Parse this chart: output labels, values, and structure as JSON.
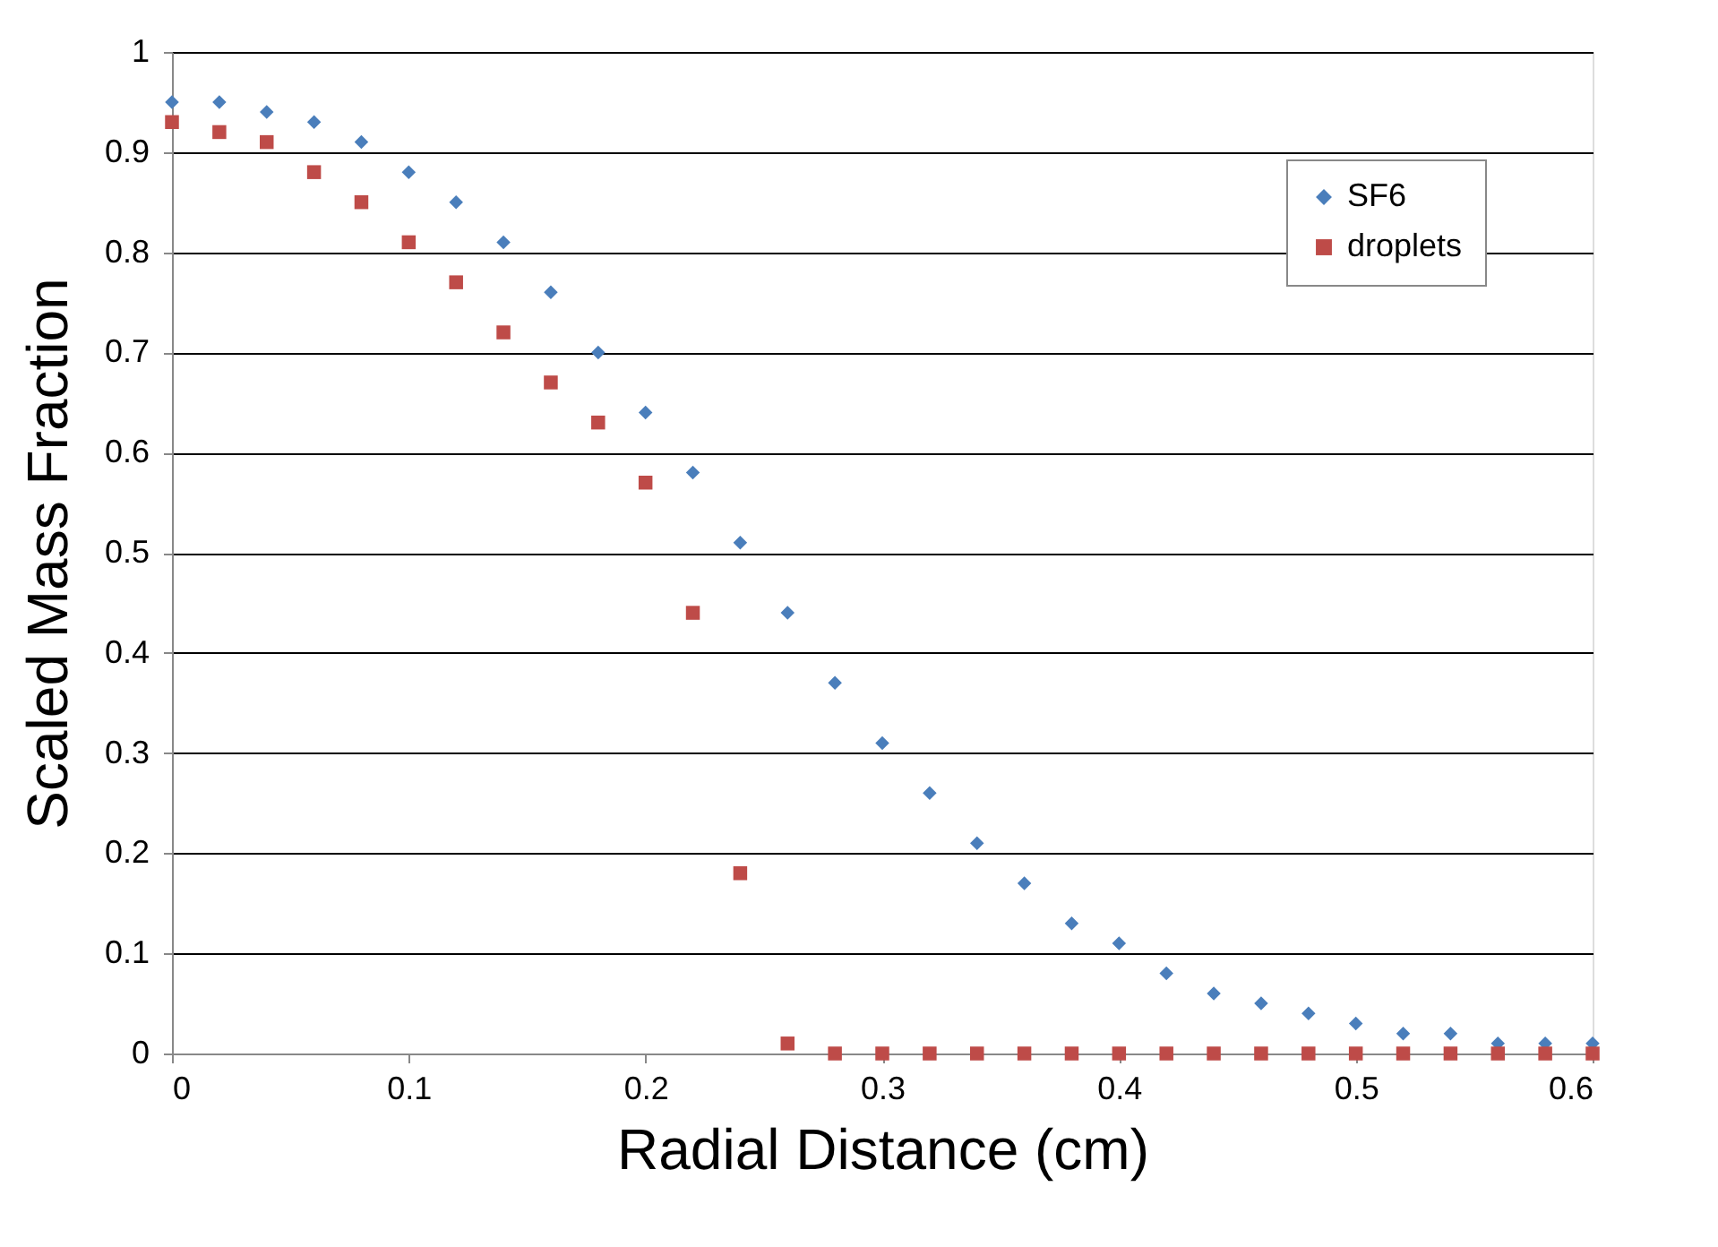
{
  "chart_data": {
    "type": "scatter",
    "xlabel": "Radial Distance (cm)",
    "ylabel": "Scaled Mass Fraction",
    "x": [
      0,
      0.02,
      0.04,
      0.06,
      0.08,
      0.1,
      0.12,
      0.14,
      0.16,
      0.18,
      0.2,
      0.22,
      0.24,
      0.26,
      0.28,
      0.3,
      0.32,
      0.34,
      0.36,
      0.38,
      0.4,
      0.42,
      0.44,
      0.46,
      0.48,
      0.5,
      0.52,
      0.54,
      0.56,
      0.58,
      0.6
    ],
    "series": [
      {
        "name": "SF6",
        "color": "#4a7ebb",
        "marker": "diamond",
        "values": [
          0.95,
          0.95,
          0.94,
          0.93,
          0.91,
          0.88,
          0.85,
          0.81,
          0.76,
          0.7,
          0.64,
          0.58,
          0.51,
          0.44,
          0.37,
          0.31,
          0.26,
          0.21,
          0.17,
          0.13,
          0.11,
          0.08,
          0.06,
          0.05,
          0.04,
          0.03,
          0.02,
          0.02,
          0.01,
          0.01,
          0.01
        ]
      },
      {
        "name": "droplets",
        "color": "#be4b48",
        "marker": "square",
        "values": [
          0.93,
          0.92,
          0.91,
          0.88,
          0.85,
          0.81,
          0.77,
          0.72,
          0.67,
          0.63,
          0.57,
          0.44,
          0.18,
          0.01,
          0,
          0,
          0,
          0,
          0,
          0,
          0,
          0,
          0,
          0,
          0,
          0,
          0,
          0,
          0,
          0,
          0
        ]
      }
    ],
    "xlim": [
      0,
      0.6
    ],
    "xticks": [
      0,
      0.1,
      0.2,
      0.3,
      0.4,
      0.5,
      0.6
    ],
    "ylim": [
      0,
      1
    ],
    "yticks": [
      0,
      0.1,
      0.2,
      0.3,
      0.4,
      0.5,
      0.6,
      0.7,
      0.8,
      0.9,
      1
    ],
    "grid": "y",
    "legend": "top right"
  }
}
